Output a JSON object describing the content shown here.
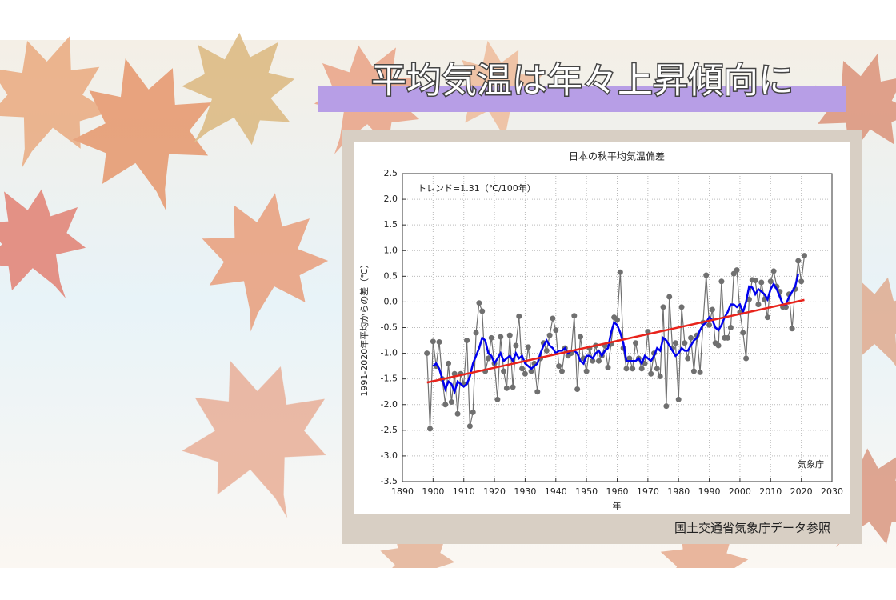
{
  "slide": {
    "title": "平均気温は年々上昇傾向に",
    "source": "国土交通省気象庁データ参照"
  },
  "chart_data": {
    "type": "line",
    "title": "日本の秋平均気温偏差",
    "x_label": "年",
    "y_label": "1991-2020年平均からの差（℃）",
    "annotations": [
      "トレンド=1.31（℃/100年）",
      "気象庁"
    ],
    "x": [
      1898,
      1899,
      1900,
      1901,
      1902,
      1903,
      1904,
      1905,
      1906,
      1907,
      1908,
      1909,
      1910,
      1911,
      1912,
      1913,
      1914,
      1915,
      1916,
      1917,
      1918,
      1919,
      1920,
      1921,
      1922,
      1923,
      1924,
      1925,
      1926,
      1927,
      1928,
      1929,
      1930,
      1931,
      1932,
      1933,
      1934,
      1935,
      1936,
      1937,
      1938,
      1939,
      1940,
      1941,
      1942,
      1943,
      1944,
      1945,
      1946,
      1947,
      1948,
      1949,
      1950,
      1951,
      1952,
      1953,
      1954,
      1955,
      1956,
      1957,
      1958,
      1959,
      1960,
      1961,
      1962,
      1963,
      1964,
      1965,
      1966,
      1967,
      1968,
      1969,
      1970,
      1971,
      1972,
      1973,
      1974,
      1975,
      1976,
      1977,
      1978,
      1979,
      1980,
      1981,
      1982,
      1983,
      1984,
      1985,
      1986,
      1987,
      1988,
      1989,
      1990,
      1991,
      1992,
      1993,
      1994,
      1995,
      1996,
      1997,
      1998,
      1999,
      2000,
      2001,
      2002,
      2003,
      2004,
      2005,
      2006,
      2007,
      2008,
      2009,
      2010,
      2011,
      2012,
      2013,
      2014,
      2015,
      2016,
      2017,
      2018,
      2019,
      2020,
      2021
    ],
    "series": [
      {
        "color": "#707070",
        "markers": true,
        "values": [
          -1.0,
          -2.47,
          -0.77,
          -1.25,
          -0.78,
          -1.5,
          -2.0,
          -1.2,
          -1.95,
          -1.4,
          -2.18,
          -1.4,
          -1.6,
          -0.75,
          -2.42,
          -2.15,
          -0.6,
          -0.02,
          -0.18,
          -1.35,
          -1.1,
          -0.7,
          -1.2,
          -1.9,
          -0.68,
          -1.35,
          -1.68,
          -0.65,
          -1.66,
          -0.85,
          -0.28,
          -1.3,
          -1.4,
          -0.88,
          -1.35,
          -1.2,
          -1.75,
          -1.1,
          -0.8,
          -0.95,
          -0.65,
          -0.32,
          -0.55,
          -1.25,
          -1.35,
          -0.9,
          -1.05,
          -1.0,
          -0.27,
          -1.7,
          -0.68,
          -1.1,
          -1.35,
          -0.9,
          -1.15,
          -0.85,
          -1.15,
          -1.05,
          -0.85,
          -1.28,
          -0.82,
          -0.3,
          -0.35,
          0.58,
          -0.9,
          -1.3,
          -1.1,
          -1.3,
          -0.8,
          -1.1,
          -1.3,
          -1.2,
          -0.58,
          -1.4,
          -1.0,
          -1.3,
          -1.45,
          -0.1,
          -2.03,
          0.1,
          -0.9,
          -0.8,
          -1.9,
          -0.1,
          -0.8,
          -1.1,
          -0.7,
          -1.35,
          -0.65,
          -1.37,
          -0.4,
          0.52,
          -0.45,
          -0.15,
          -0.8,
          -0.85,
          0.4,
          -0.7,
          -0.7,
          -0.5,
          0.55,
          0.62,
          -0.2,
          -0.6,
          -1.1,
          0.05,
          0.43,
          0.42,
          -0.05,
          0.38,
          0.05,
          -0.3,
          0.4,
          0.6,
          0.3,
          0.2,
          -0.1,
          -0.1,
          0.15,
          -0.52,
          0.25,
          0.8,
          0.4,
          0.9
        ]
      },
      {
        "color": "#0000ee",
        "values": [
          null,
          null,
          -1.25,
          -1.2,
          -1.3,
          -1.5,
          -1.7,
          -1.55,
          -1.6,
          -1.75,
          -1.55,
          -1.6,
          -1.65,
          -1.6,
          -1.45,
          -1.2,
          -1.05,
          -0.9,
          -0.7,
          -0.75,
          -1.0,
          -1.05,
          -1.2,
          -1.1,
          -1.0,
          -1.15,
          -1.1,
          -1.05,
          -1.15,
          -1.0,
          -1.1,
          -1.05,
          -1.2,
          -1.25,
          -1.3,
          -1.25,
          -1.2,
          -1.0,
          -0.85,
          -0.75,
          -0.85,
          -0.9,
          -1.0,
          -0.95,
          -0.95,
          -0.9,
          -1.0,
          -0.95,
          -0.95,
          -1.0,
          -1.15,
          -1.2,
          -1.05,
          -1.05,
          -1.1,
          -1.0,
          -0.95,
          -1.05,
          -0.95,
          -0.9,
          -0.6,
          -0.4,
          -0.45,
          -0.6,
          -0.8,
          -1.15,
          -1.15,
          -1.15,
          -1.15,
          -1.1,
          -1.2,
          -1.05,
          -1.1,
          -1.15,
          -1.05,
          -0.9,
          -0.95,
          -0.7,
          -0.75,
          -0.85,
          -0.95,
          -1.05,
          -1.0,
          -0.9,
          -0.95,
          -0.95,
          -0.85,
          -0.75,
          -0.7,
          -0.55,
          -0.45,
          -0.4,
          -0.3,
          -0.35,
          -0.5,
          -0.55,
          -0.45,
          -0.3,
          -0.2,
          -0.05,
          -0.05,
          -0.1,
          -0.05,
          -0.2,
          0.0,
          0.3,
          0.28,
          0.15,
          0.25,
          0.2,
          0.15,
          0.05,
          0.25,
          0.35,
          0.25,
          0.1,
          -0.05,
          -0.05,
          0.1,
          0.2,
          0.3,
          0.55,
          null,
          null
        ]
      }
    ],
    "trend": {
      "color": "#e8231b",
      "x": [
        1898,
        2021
      ],
      "values": [
        -1.57,
        0.04
      ]
    },
    "xlim": [
      1890,
      2030
    ],
    "xticks": [
      1890,
      1900,
      1910,
      1920,
      1930,
      1940,
      1950,
      1960,
      1970,
      1980,
      1990,
      2000,
      2010,
      2020,
      2030
    ],
    "ylim": [
      -3.5,
      2.5
    ],
    "yticks": [
      {
        "value": -3.5,
        "label": "-3.5"
      },
      {
        "value": -3,
        "label": "-3.0"
      },
      -2.5,
      {
        "value": -2,
        "label": "-2.0"
      },
      -1.5,
      {
        "value": -1,
        "label": "-1.0"
      },
      -0.5,
      {
        "value": 0,
        "label": "0.0"
      },
      0.5,
      {
        "value": 1,
        "label": "1.0"
      },
      1.5,
      {
        "value": 2,
        "label": "2.0"
      },
      2.5
    ],
    "grid": true
  }
}
